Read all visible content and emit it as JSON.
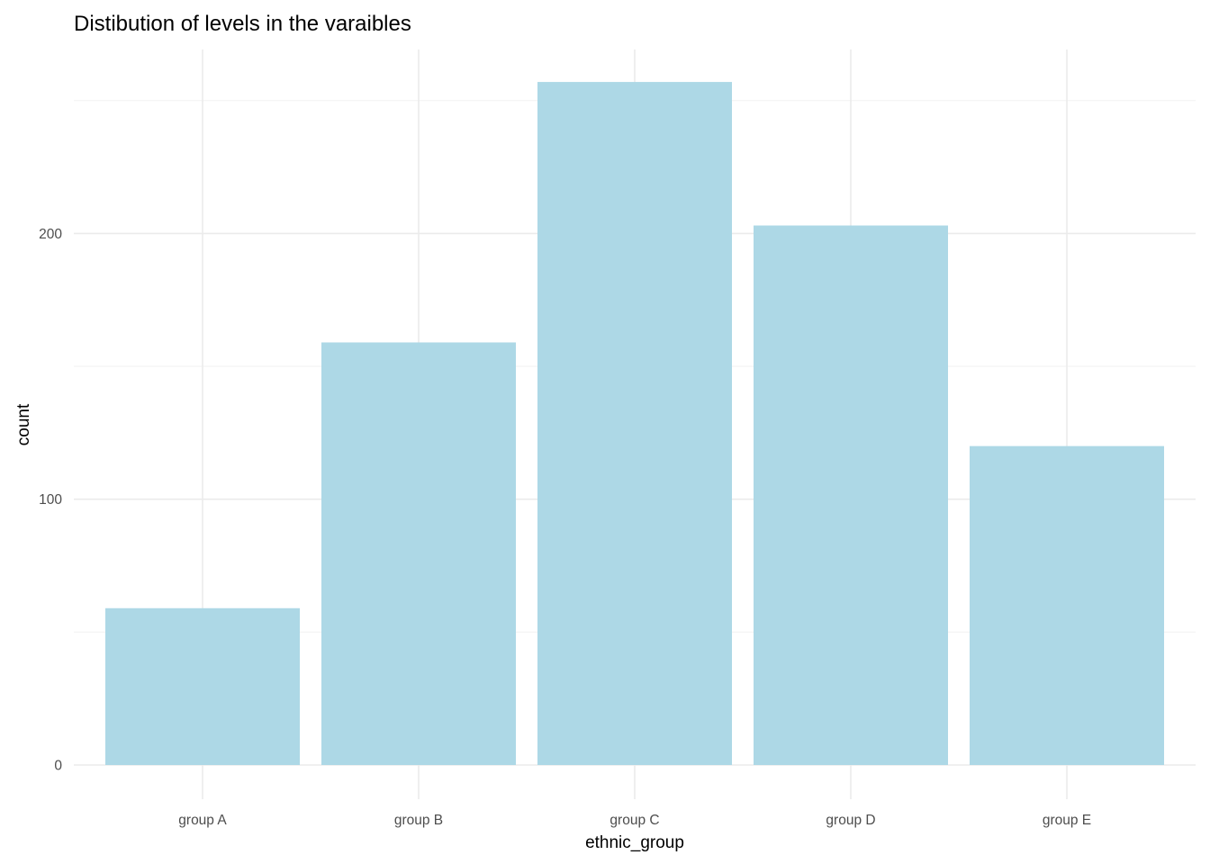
{
  "chart_data": {
    "type": "bar",
    "title": "Distibution of levels in the varaibles",
    "xlabel": "ethnic_group",
    "ylabel": "count",
    "categories": [
      "group A",
      "group B",
      "group C",
      "group D",
      "group E"
    ],
    "values": [
      59,
      159,
      257,
      203,
      120
    ],
    "ylim": [
      0,
      260
    ],
    "y_major_ticks": [
      0,
      100,
      200
    ],
    "y_minor_ticks": [
      50,
      150,
      250
    ],
    "grid": true,
    "legend": "none",
    "colors": {
      "bar_fill": "#ADD8E6",
      "grid_major": "#EBEBEB",
      "grid_minor": "#F2F2F2",
      "tick_text": "#4D4D4D",
      "text": "#000000"
    }
  }
}
